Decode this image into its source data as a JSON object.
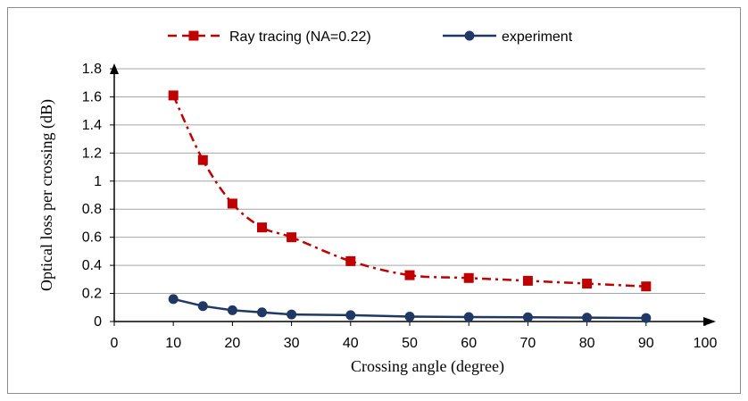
{
  "chart_data": {
    "type": "line",
    "xlabel": "Crossing angle (degree)",
    "ylabel": "Optical loss per crossing (dB)",
    "xlim": [
      0,
      100
    ],
    "ylim": [
      0,
      1.8
    ],
    "xticks": [
      "0",
      "10",
      "20",
      "30",
      "40",
      "50",
      "60",
      "70",
      "80",
      "90",
      "100"
    ],
    "yticks": [
      "0",
      "0.2",
      "0.4",
      "0.6",
      "0.8",
      "1",
      "1.2",
      "1.4",
      "1.6",
      "1.8"
    ],
    "grid": "horizontal",
    "legend_position": "top",
    "series": [
      {
        "name": "Ray tracing (NA=0.22)",
        "color": "#c00000",
        "line_style": "dash-dot",
        "marker": "square",
        "x": [
          10,
          15,
          20,
          25,
          30,
          40,
          50,
          60,
          70,
          80,
          90
        ],
        "y": [
          1.61,
          1.15,
          0.84,
          0.67,
          0.6,
          0.43,
          0.33,
          0.31,
          0.29,
          0.27,
          0.25
        ]
      },
      {
        "name": "experiment",
        "color": "#1f3864",
        "line_style": "solid",
        "marker": "circle",
        "x": [
          10,
          15,
          20,
          25,
          30,
          40,
          50,
          60,
          70,
          80,
          90
        ],
        "y": [
          0.16,
          0.11,
          0.08,
          0.065,
          0.05,
          0.045,
          0.035,
          0.032,
          0.03,
          0.028,
          0.025
        ]
      }
    ]
  }
}
